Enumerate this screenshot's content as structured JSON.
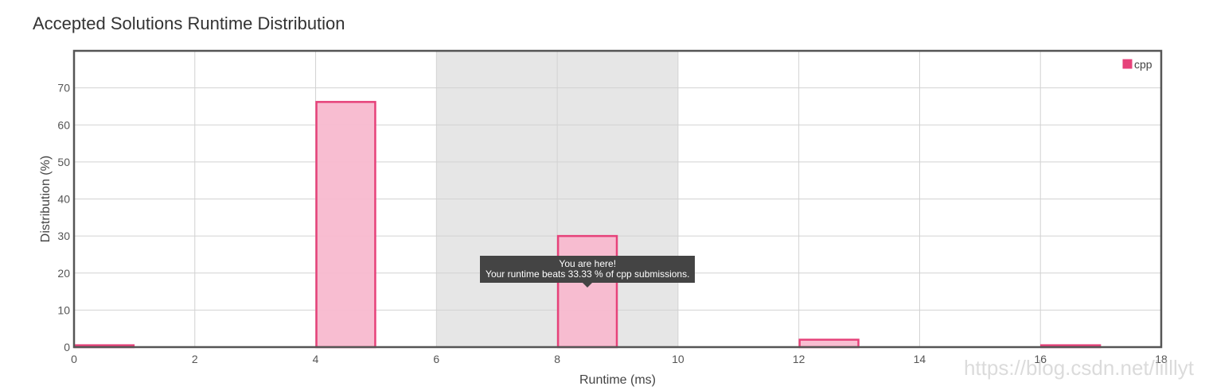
{
  "title": "Accepted Solutions Runtime Distribution",
  "chart_data": {
    "type": "bar",
    "bin_width": 1,
    "series": [
      {
        "name": "cpp",
        "color": "#e6427a",
        "fill": "#f8b9cf",
        "x": [
          0,
          4,
          8,
          12,
          16
        ],
        "values": [
          0.5,
          66.2,
          30,
          2,
          0.5
        ]
      }
    ],
    "highlight_range": [
      6,
      10
    ],
    "xlabel": "Runtime (ms)",
    "ylabel": "Distribution (%)",
    "xlim": [
      0,
      18
    ],
    "ylim": [
      0,
      80
    ],
    "xticks": [
      0,
      2,
      4,
      6,
      8,
      10,
      12,
      14,
      16,
      18
    ],
    "yticks": [
      0,
      10,
      20,
      30,
      40,
      50,
      60,
      70
    ],
    "grid": true,
    "legend_position": "top-right",
    "tooltip": {
      "x": 8.5,
      "line1": "You are here!",
      "line2": "Your runtime beats 33.33 % of cpp submissions."
    }
  },
  "watermark": "https://blog.csdn.net/lilllyt"
}
